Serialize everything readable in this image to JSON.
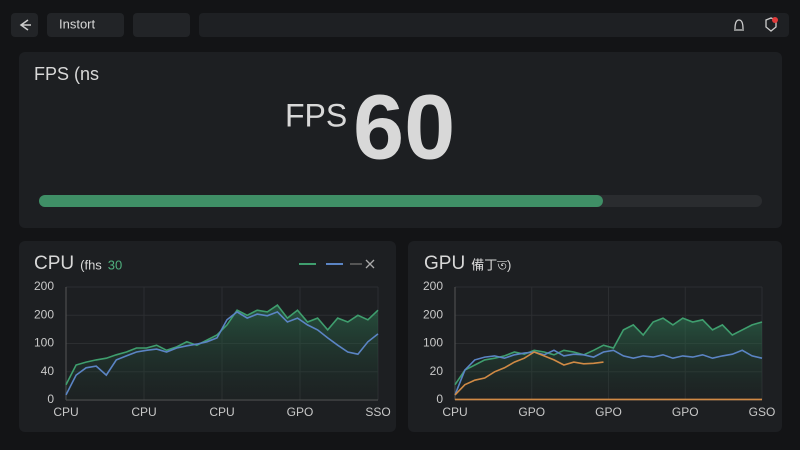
{
  "top_bar": {
    "tab_label": "Instort"
  },
  "fps_panel": {
    "title": "FPS (ns",
    "label": "FPS",
    "value": "60",
    "progress": {
      "value": 78,
      "max": 100,
      "color": "#3f8f66"
    }
  },
  "chart_data": [
    {
      "type": "line",
      "title": "CPU",
      "subtitle": "(fhs",
      "badge": "30",
      "y_axis_labels": [
        "200",
        "200",
        "100",
        "40",
        "0"
      ],
      "x_axis_labels": [
        "CPU",
        "CPU",
        "CPU",
        "GPO",
        "SSO"
      ],
      "ylim": [
        0,
        200
      ],
      "grid": true,
      "legend": true,
      "series": [
        {
          "color": "#3f9e6e",
          "area": true,
          "values": [
            27,
            62,
            67,
            71,
            74,
            80,
            85,
            92,
            92,
            97,
            88,
            94,
            103,
            97,
            106,
            115,
            133,
            159,
            150,
            159,
            156,
            168,
            145,
            159,
            138,
            145,
            124,
            145,
            138,
            150,
            142,
            159
          ]
        },
        {
          "color": "#5b84c4",
          "values": [
            9,
            44,
            57,
            60,
            44,
            71,
            78,
            85,
            88,
            90,
            85,
            92,
            96,
            99,
            103,
            110,
            142,
            156,
            145,
            152,
            149,
            156,
            138,
            145,
            133,
            124,
            110,
            97,
            85,
            81,
            103,
            117
          ]
        }
      ]
    },
    {
      "type": "line",
      "title": "GPU",
      "subtitle": "備丁ত)",
      "y_axis_labels": [
        "200",
        "200",
        "100",
        "20",
        "0"
      ],
      "x_axis_labels": [
        "CPU",
        "GPO",
        "GPO",
        "GPO",
        "GSO"
      ],
      "ylim": [
        0,
        200
      ],
      "grid": true,
      "legend": false,
      "series": [
        {
          "color": "#3f9e6e",
          "area": true,
          "values": [
            27,
            53,
            62,
            71,
            74,
            78,
            85,
            81,
            88,
            85,
            80,
            88,
            85,
            80,
            88,
            97,
            92,
            124,
            133,
            115,
            138,
            145,
            133,
            145,
            138,
            142,
            124,
            133,
            115,
            124,
            133,
            138
          ]
        },
        {
          "color": "#5b84c4",
          "values": [
            9,
            53,
            71,
            76,
            78,
            74,
            80,
            83,
            85,
            80,
            88,
            78,
            81,
            80,
            76,
            85,
            88,
            78,
            74,
            78,
            76,
            80,
            74,
            78,
            76,
            80,
            74,
            78,
            81,
            88,
            78,
            74
          ]
        },
        {
          "color": "#d08a45",
          "values": [
            9,
            27,
            35,
            39,
            50,
            57,
            67,
            74,
            85,
            78,
            71,
            62,
            67,
            64,
            65,
            67,
            null,
            null,
            null,
            null,
            null,
            null,
            null,
            null,
            null,
            null,
            null,
            null,
            null,
            null,
            null,
            null
          ]
        },
        {
          "color": "#d08a45",
          "values": [
            1,
            1,
            1,
            1,
            1,
            1,
            1,
            1,
            1,
            1,
            1,
            1,
            1,
            1,
            1,
            1,
            1,
            1,
            1,
            1,
            1,
            1,
            1,
            1,
            1,
            1,
            1,
            1,
            1,
            1,
            1,
            1
          ]
        }
      ]
    }
  ]
}
